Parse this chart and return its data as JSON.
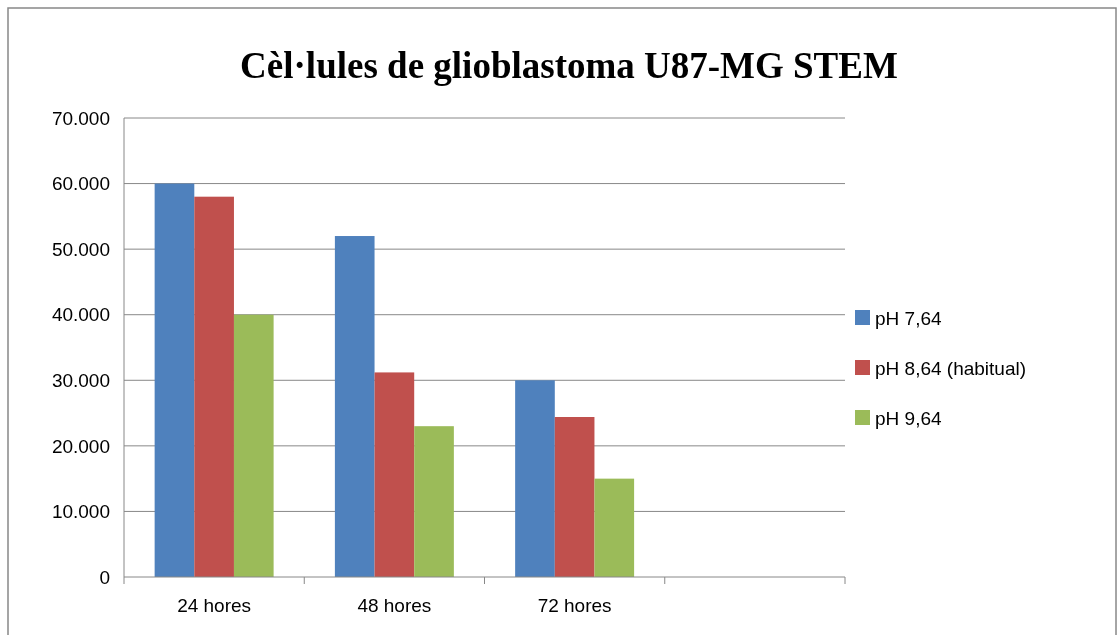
{
  "chart_data": {
    "type": "bar",
    "title": "Cèl·lules de glioblastoma U87-MG STEM",
    "categories": [
      "24 hores",
      "48 hores",
      "72 hores",
      null
    ],
    "series": [
      {
        "name": "pH 7,64",
        "color": "#4f81bd",
        "values": [
          60000,
          52000,
          30000,
          null
        ]
      },
      {
        "name": "pH 8,64 (habitual)",
        "color": "#c0504d",
        "values": [
          58000,
          31200,
          24400,
          null
        ]
      },
      {
        "name": "pH 9,64",
        "color": "#9bbb59",
        "values": [
          40000,
          23000,
          15000,
          null
        ]
      }
    ],
    "ylim": [
      0,
      70000
    ],
    "yticks": [
      {
        "value": 0,
        "label": "0"
      },
      {
        "value": 10000,
        "label": "10.000"
      },
      {
        "value": 20000,
        "label": "20.000"
      },
      {
        "value": 30000,
        "label": "30.000"
      },
      {
        "value": 40000,
        "label": "40.000"
      },
      {
        "value": 50000,
        "label": "50.000"
      },
      {
        "value": 60000,
        "label": "60.000"
      },
      {
        "value": 70000,
        "label": "70.000"
      }
    ],
    "grid": "y",
    "legend": "right"
  }
}
